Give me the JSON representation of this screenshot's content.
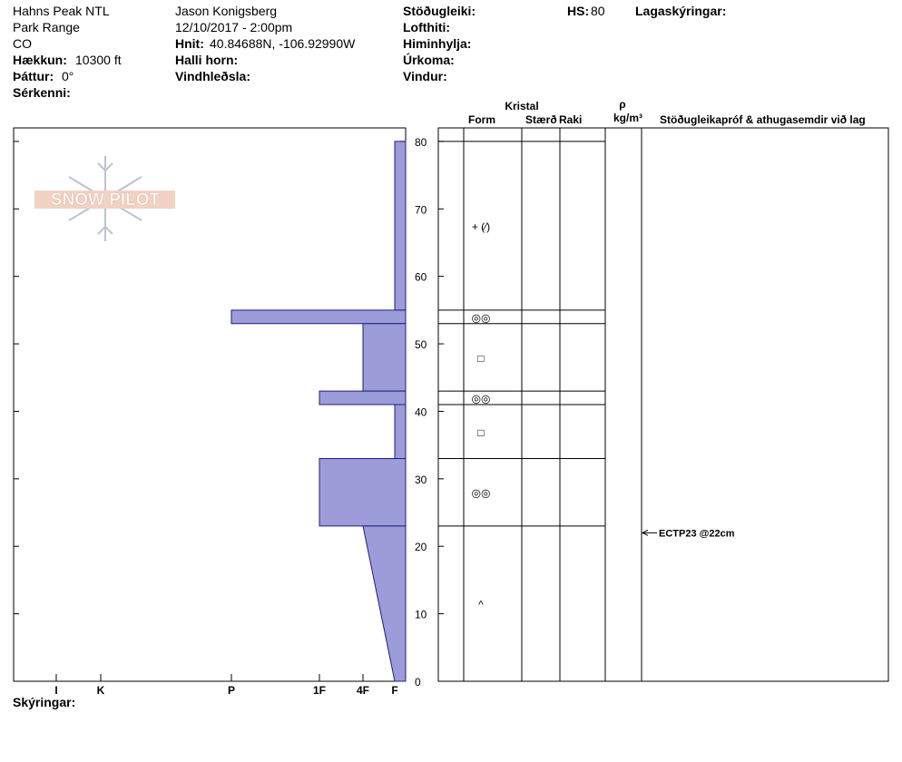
{
  "header": {
    "location": [
      "Hahns Peak NTL",
      "Park Range",
      "CO"
    ],
    "elevation": {
      "label": "Hækkun:",
      "value": "10300 ft"
    },
    "aspect": {
      "label": "Þáttur:",
      "value": "0°"
    },
    "features": "Sérkenni:",
    "observer": "Jason Konigsberg",
    "datetime": "12/10/2017 - 2:00pm",
    "coordinates": {
      "label": "Hnit:",
      "value": "40.84688N, -106.92990W"
    },
    "slope_angle": "Halli horn:",
    "wind_loading": "Vindhleðsla:",
    "conditions": [
      "Stöðugleiki:",
      "Lofthiti:",
      "Himinhylja:",
      "Úrkoma:",
      "Vindur:"
    ],
    "hs": {
      "label": "HS:",
      "value": 80
    },
    "layer_notes": "Lagaskýringar:"
  },
  "logo": "SNOW PILOT",
  "chart_data": {
    "type": "hardness_profile",
    "ylim": [
      0,
      82
    ],
    "yticks": [
      0,
      10,
      20,
      30,
      40,
      50,
      60,
      70,
      80
    ],
    "hardness_scale": [
      "I",
      "K",
      "P",
      "1F",
      "4F",
      "F"
    ],
    "color": "#9c9cd8",
    "layers": [
      {
        "top": 80,
        "bottom": 55,
        "hardness": "F",
        "form": "+ (⁄)"
      },
      {
        "top": 55,
        "bottom": 53,
        "hardness": "P",
        "form": "◎◎"
      },
      {
        "top": 53,
        "bottom": 43,
        "hardness": "4F",
        "form": "□"
      },
      {
        "top": 43,
        "bottom": 41,
        "hardness": "1F",
        "form": "◎◎"
      },
      {
        "top": 41,
        "bottom": 33,
        "hardness": "F",
        "form": "□"
      },
      {
        "top": 33,
        "bottom": 23,
        "hardness": "1F",
        "form": "◎◎"
      },
      {
        "top": 23,
        "bottom": 0,
        "hardness": "4F",
        "hardness_bottom": "F",
        "form": "^"
      }
    ],
    "tests": [
      {
        "text": "ECTP23 @22cm",
        "depth": 22
      }
    ]
  },
  "table": {
    "crystal": "Kristal",
    "columns": [
      "Form",
      "Stærð",
      "Raki"
    ],
    "density_symbol": "ρ",
    "density_unit": "kg/m³",
    "comments": "Stöðugleikapróf & athugasemdir við lag"
  },
  "footer": "Skýringar:"
}
